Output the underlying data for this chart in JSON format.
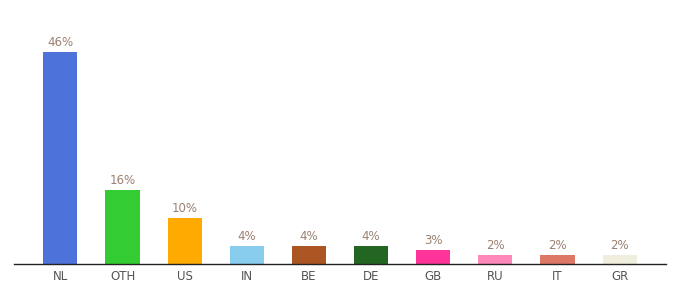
{
  "categories": [
    "NL",
    "OTH",
    "US",
    "IN",
    "BE",
    "DE",
    "GB",
    "RU",
    "IT",
    "GR"
  ],
  "values": [
    46,
    16,
    10,
    4,
    4,
    4,
    3,
    2,
    2,
    2
  ],
  "bar_colors": [
    "#4d72d9",
    "#33cc33",
    "#ffaa00",
    "#88ccee",
    "#aa5522",
    "#226622",
    "#ff3399",
    "#ff88bb",
    "#dd7766",
    "#f0eedc"
  ],
  "label_color": "#9a8070",
  "label_fontsize": 8.5,
  "tick_fontsize": 8.5,
  "tick_color": "#555555",
  "ylim": [
    0,
    52
  ],
  "bar_width": 0.55,
  "bottom_spine_color": "#222222",
  "background_color": "#ffffff"
}
